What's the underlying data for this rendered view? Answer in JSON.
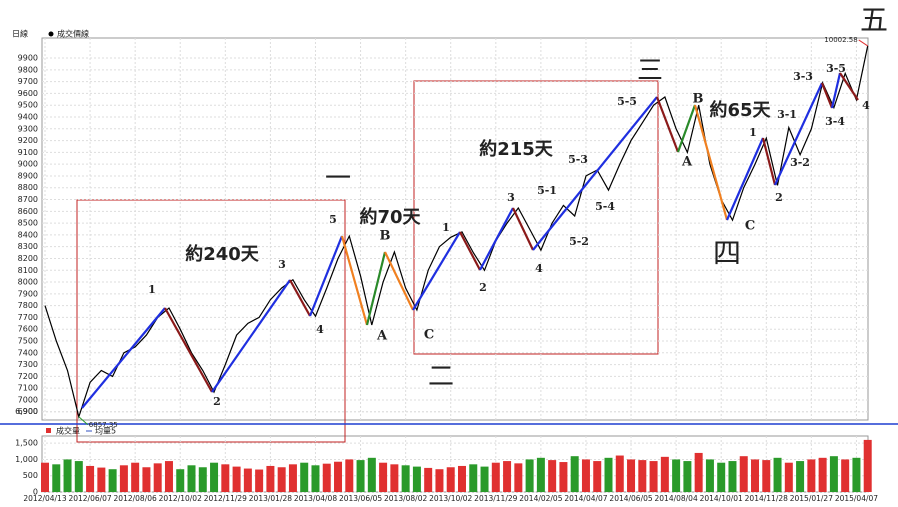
{
  "chart_data": [
    {
      "type": "line",
      "y_label": "日線",
      "series": [
        {
          "name": "成交價線",
          "color": "#000000",
          "values": [
            7800,
            7500,
            7250,
            6857.35,
            7150,
            7250,
            7200,
            7400,
            7450,
            7550,
            7700,
            7780,
            7600,
            7400,
            7250,
            7067,
            7300,
            7550,
            7650,
            7700,
            7850,
            7950,
            8020,
            7850,
            7710,
            7950,
            8200,
            8390,
            8050,
            7636,
            8000,
            8255,
            7950,
            7763,
            8100,
            8300,
            8380,
            8425,
            8250,
            8100,
            8350,
            8500,
            8628,
            8450,
            8270,
            8500,
            8650,
            8560,
            8900,
            8950,
            8780,
            9000,
            9200,
            9350,
            9500,
            9570,
            9300,
            9100,
            9500,
            9000,
            8700,
            8525,
            8800,
            9000,
            9220,
            8820,
            9310,
            9080,
            9300,
            9690,
            9480,
            9770,
            9545,
            10002.58
          ]
        }
      ],
      "ylim": [
        6830,
        10070
      ],
      "yticks": [
        6900,
        7000,
        7100,
        7200,
        7300,
        7400,
        7500,
        7600,
        7700,
        7800,
        7900,
        8000,
        8100,
        8200,
        8300,
        8400,
        8500,
        8600,
        8700,
        8800,
        8900,
        9000,
        9100,
        9200,
        9300,
        9400,
        9500,
        9600,
        9700,
        9800,
        9900,
        {
          "value": 6900,
          "label": "6,900"
        }
      ],
      "extremes": [
        {
          "value": 10002.58,
          "label": "10002.58",
          "color": "#e03030"
        },
        {
          "value": 6857.35,
          "label": "6857.35",
          "color": "#2a9a2a"
        }
      ],
      "grid": true,
      "annotations": [
        {
          "text": "1",
          "color": "#000000"
        },
        {
          "text": "2",
          "color": "#000000"
        },
        {
          "text": "3",
          "color": "#000000"
        },
        {
          "text": "4",
          "color": "#000000"
        },
        {
          "text": "5",
          "color": "#000000"
        },
        {
          "text": "1",
          "color": "#000000"
        },
        {
          "text": "2",
          "color": "#000000"
        },
        {
          "text": "3",
          "color": "#000000"
        },
        {
          "text": "4",
          "color": "#000000"
        },
        {
          "text": "5-1",
          "color": "#000000"
        },
        {
          "text": "5-2",
          "color": "#000000"
        },
        {
          "text": "5-3",
          "color": "#000000"
        },
        {
          "text": "5-4",
          "color": "#000000"
        },
        {
          "text": "5-5",
          "color": "#000000"
        },
        {
          "text": "1",
          "color": "#000000"
        },
        {
          "text": "2",
          "color": "#000000"
        },
        {
          "text": "3-1",
          "color": "#000000"
        },
        {
          "text": "3-2",
          "color": "#000000"
        },
        {
          "text": "3-3",
          "color": "#000000"
        },
        {
          "text": "3-5",
          "color": "#000000"
        },
        {
          "text": "3-4",
          "color": "#000000"
        },
        {
          "text": "4",
          "color": "#000000"
        },
        {
          "text": "B",
          "color": "#8b3a00"
        },
        {
          "text": "A",
          "color": "#8b3a00"
        },
        {
          "text": "C",
          "color": "#8b3a00"
        },
        {
          "text": "A",
          "color": "#8b3a00"
        },
        {
          "text": "B",
          "color": "#8b3a00"
        },
        {
          "text": "C",
          "color": "#8b3a00"
        },
        {
          "text": "約240天",
          "color": "#000000"
        },
        {
          "text": "約215天",
          "color": "#000000"
        },
        {
          "text": "約70天",
          "color": "#8b3a00"
        },
        {
          "text": "約65天",
          "color": "#8b3a00"
        },
        {
          "text": "一",
          "color": "#1f3fd0"
        },
        {
          "text": "二",
          "color": "#1f3fd0"
        },
        {
          "text": "三",
          "color": "#1f3fd0"
        },
        {
          "text": "四",
          "color": "#1f3fd0"
        },
        {
          "text": "五",
          "color": "#1f3fd0"
        }
      ]
    },
    {
      "type": "bar",
      "categories": [
        "2012/04/13",
        null,
        null,
        null,
        "2012/06/07",
        null,
        null,
        null,
        "2012/08/06",
        null,
        null,
        null,
        "2012/10/02",
        null,
        null,
        null,
        "2012/11/29",
        null,
        null,
        null,
        "2013/01/28",
        null,
        null,
        null,
        "2013/04/08",
        null,
        null,
        null,
        "2013/06/05",
        null,
        null,
        null,
        "2013/08/02",
        null,
        null,
        null,
        "2013/10/02",
        null,
        null,
        null,
        "2013/11/29",
        null,
        null,
        null,
        "2014/02/05",
        null,
        null,
        null,
        "2014/04/07",
        null,
        null,
        null,
        "2014/06/05",
        null,
        null,
        null,
        "2014/08/04",
        null,
        null,
        null,
        "2014/10/01",
        null,
        null,
        null,
        "2014/11/28",
        null,
        null,
        null,
        "2015/01/27",
        null,
        null,
        null,
        "2015/04/07",
        null
      ],
      "series": [
        {
          "name": "成交量",
          "color": "#e03030",
          "values": [
            900,
            850,
            1000,
            950,
            800,
            750,
            700,
            820,
            900,
            760,
            880,
            950,
            700,
            820,
            760,
            900,
            850,
            780,
            720,
            690,
            800,
            760,
            850,
            900,
            820,
            870,
            930,
            1000,
            980,
            1050,
            900,
            850,
            820,
            780,
            740,
            700,
            760,
            800,
            850,
            780,
            900,
            950,
            880,
            1000,
            1050,
            980,
            920,
            1100,
            1000,
            950,
            1050,
            1120,
            1000,
            980,
            950,
            1080,
            1000,
            950,
            1200,
            1000,
            900,
            950,
            1100,
            1000,
            980,
            1050,
            900,
            950,
            1000,
            1050,
            1100,
            1000,
            1050,
            1600
          ]
        }
      ],
      "ma_name": "均量5",
      "ma_color": "#3050c0",
      "up_color": "#e03030",
      "down_color": "#2a9a2a",
      "ylim": [
        0,
        1720
      ],
      "yticks": [
        0,
        500,
        {
          "value": 1000,
          "label": "1,000"
        },
        {
          "value": 1500,
          "label": "1,500"
        }
      ]
    }
  ]
}
